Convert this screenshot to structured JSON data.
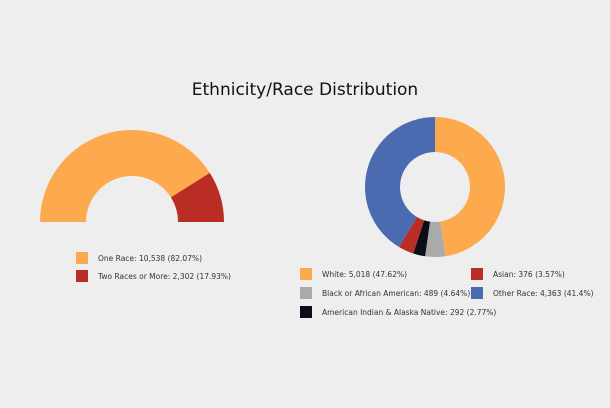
{
  "chart_data": [
    {
      "type": "pie",
      "variant": "half-donut",
      "title": "Ethnicity/Race Distribution",
      "slices": [
        {
          "label": "One Race: 10,538 (82.07%)",
          "value": 10538,
          "percent": 82.07,
          "color": "#fda94d"
        },
        {
          "label": "Two Races or More: 2,302 (17.93%)",
          "value": 2302,
          "percent": 17.93,
          "color": "#b92d24"
        }
      ]
    },
    {
      "type": "pie",
      "variant": "donut",
      "slices": [
        {
          "label": "White: 5,018 (47.62%)",
          "value": 5018,
          "percent": 47.62,
          "color": "#fda94d"
        },
        {
          "label": "Black or African American: 489 (4.64%)",
          "value": 489,
          "percent": 4.64,
          "color": "#aaaaaa"
        },
        {
          "label": "American Indian & Alaska Native: 292 (2.77%)",
          "value": 292,
          "percent": 2.77,
          "color": "#0b0d18"
        },
        {
          "label": "Asian: 376 (3.57%)",
          "value": 376,
          "percent": 3.57,
          "color": "#b92d24"
        },
        {
          "label": "Other Race: 4,363 (41.4%)",
          "value": 4363,
          "percent": 41.4,
          "color": "#4a6baf"
        }
      ]
    }
  ]
}
